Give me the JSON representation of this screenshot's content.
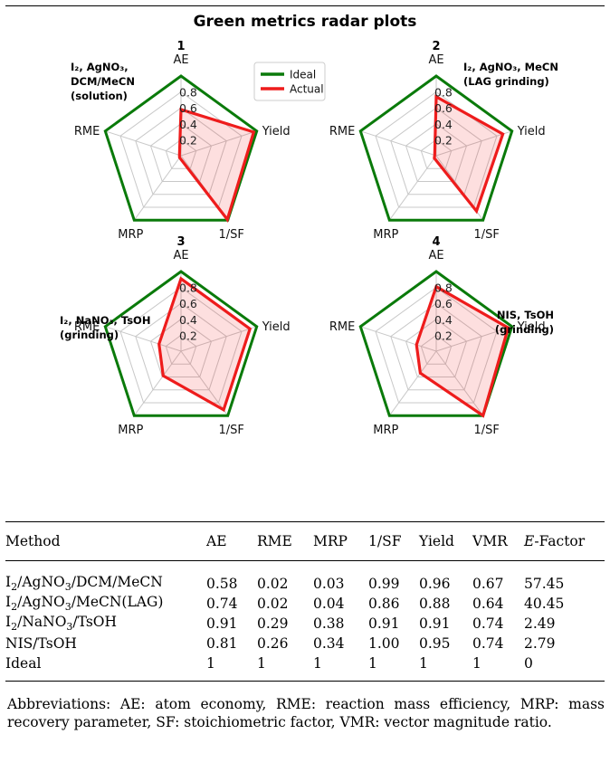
{
  "figure": {
    "title": "Green metrics radar plots",
    "legend": [
      {
        "label": "Ideal",
        "color": "#0a7a0a"
      },
      {
        "label": "Actual",
        "color": "#ee1c1c"
      }
    ]
  },
  "chart_data": {
    "type": "radar",
    "title": "Green metrics radar plots",
    "axes": [
      "AE",
      "Yield",
      "1/SF",
      "MRP",
      "RME"
    ],
    "radial_ticks": [
      "0.2",
      "0.4",
      "0.6",
      "0.8"
    ],
    "rlim": [
      0,
      1
    ],
    "grid": true,
    "legend_position": "top-right of plot 1",
    "series_colors": {
      "Ideal": "#0a7a0a",
      "Actual": "#ee1c1c"
    },
    "plots": [
      {
        "number": "1",
        "label_lines": [
          "I₂, AgNO₃,",
          "DCM/MeCN",
          "(solution)"
        ],
        "series": [
          {
            "name": "Ideal",
            "values": [
              1,
              1,
              1,
              1,
              1
            ]
          },
          {
            "name": "Actual",
            "values": [
              0.58,
              0.96,
              0.99,
              0.03,
              0.02
            ]
          }
        ]
      },
      {
        "number": "2",
        "label_lines": [
          "I₂, AgNO₃, MeCN",
          "(LAG grinding)"
        ],
        "series": [
          {
            "name": "Ideal",
            "values": [
              1,
              1,
              1,
              1,
              1
            ]
          },
          {
            "name": "Actual",
            "values": [
              0.74,
              0.88,
              0.86,
              0.04,
              0.02
            ]
          }
        ]
      },
      {
        "number": "3",
        "label_lines": [
          "I₂, NaNO₃, TsOH",
          "(grinding)"
        ],
        "series": [
          {
            "name": "Ideal",
            "values": [
              1,
              1,
              1,
              1,
              1
            ]
          },
          {
            "name": "Actual",
            "values": [
              0.91,
              0.91,
              0.91,
              0.38,
              0.29
            ]
          }
        ]
      },
      {
        "number": "4",
        "label_lines": [
          "NIS, TsOH",
          "(grinding)"
        ],
        "series": [
          {
            "name": "Ideal",
            "values": [
              1,
              1,
              1,
              1,
              1
            ]
          },
          {
            "name": "Actual",
            "values": [
              0.81,
              0.95,
              1.0,
              0.34,
              0.26
            ]
          }
        ]
      }
    ]
  },
  "table": {
    "headers": [
      "Method",
      "AE",
      "RME",
      "MRP",
      "1/SF",
      "Yield",
      "VMR",
      "E-Factor"
    ],
    "rows": [
      [
        "I2/AgNO3/DCM/MeCN",
        "0.58",
        "0.02",
        "0.03",
        "0.99",
        "0.96",
        "0.67",
        "57.45"
      ],
      [
        "I2/AgNO3/MeCN(LAG)",
        "0.74",
        "0.02",
        "0.04",
        "0.86",
        "0.88",
        "0.64",
        "40.45"
      ],
      [
        "I2/NaNO3/TsOH",
        "0.91",
        "0.29",
        "0.38",
        "0.91",
        "0.91",
        "0.74",
        "2.49"
      ],
      [
        "NIS/TsOH",
        "0.81",
        "0.26",
        "0.34",
        "1.00",
        "0.95",
        "0.74",
        "2.79"
      ],
      [
        "Ideal",
        "1",
        "1",
        "1",
        "1",
        "1",
        "1",
        "0"
      ]
    ]
  },
  "footnote": "Abbreviations: AE: atom economy, RME: reaction mass efficiency, MRP: mass recovery parameter, SF: stoichiometric factor, VMR: vector magnitude ratio."
}
